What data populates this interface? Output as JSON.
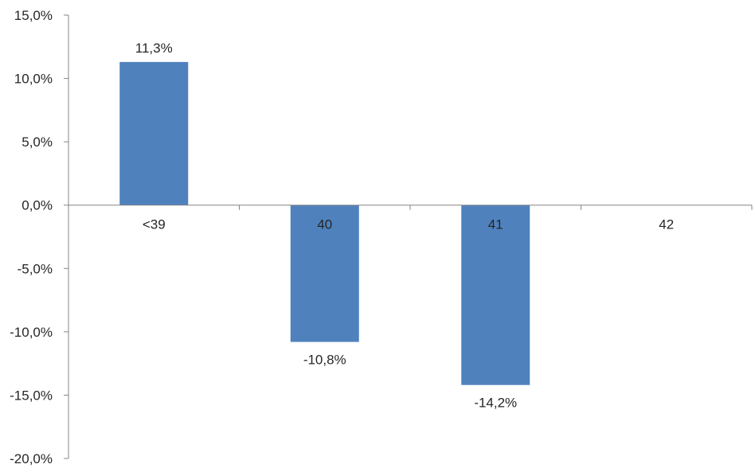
{
  "chart_data": {
    "type": "bar",
    "categories": [
      "<39",
      "40",
      "41",
      "42"
    ],
    "values": [
      11.3,
      -10.8,
      -14.2,
      0
    ],
    "data_labels": [
      "11,3%",
      "-10,8%",
      "-14,2%",
      ""
    ],
    "title": "",
    "xlabel": "",
    "ylabel": "",
    "ylim": [
      -20,
      15
    ],
    "y_ticks": [
      15,
      10,
      5,
      0,
      -5,
      -10,
      -15,
      -20
    ],
    "y_tick_labels": [
      "15,0%",
      "10,0%",
      "5,0%",
      "0,0%",
      "-5,0%",
      "-10,0%",
      "-15,0%",
      "-20,0%"
    ],
    "grid": false,
    "legend": "none",
    "bar_color": "#4f81bd",
    "axis_color": "#868686"
  }
}
